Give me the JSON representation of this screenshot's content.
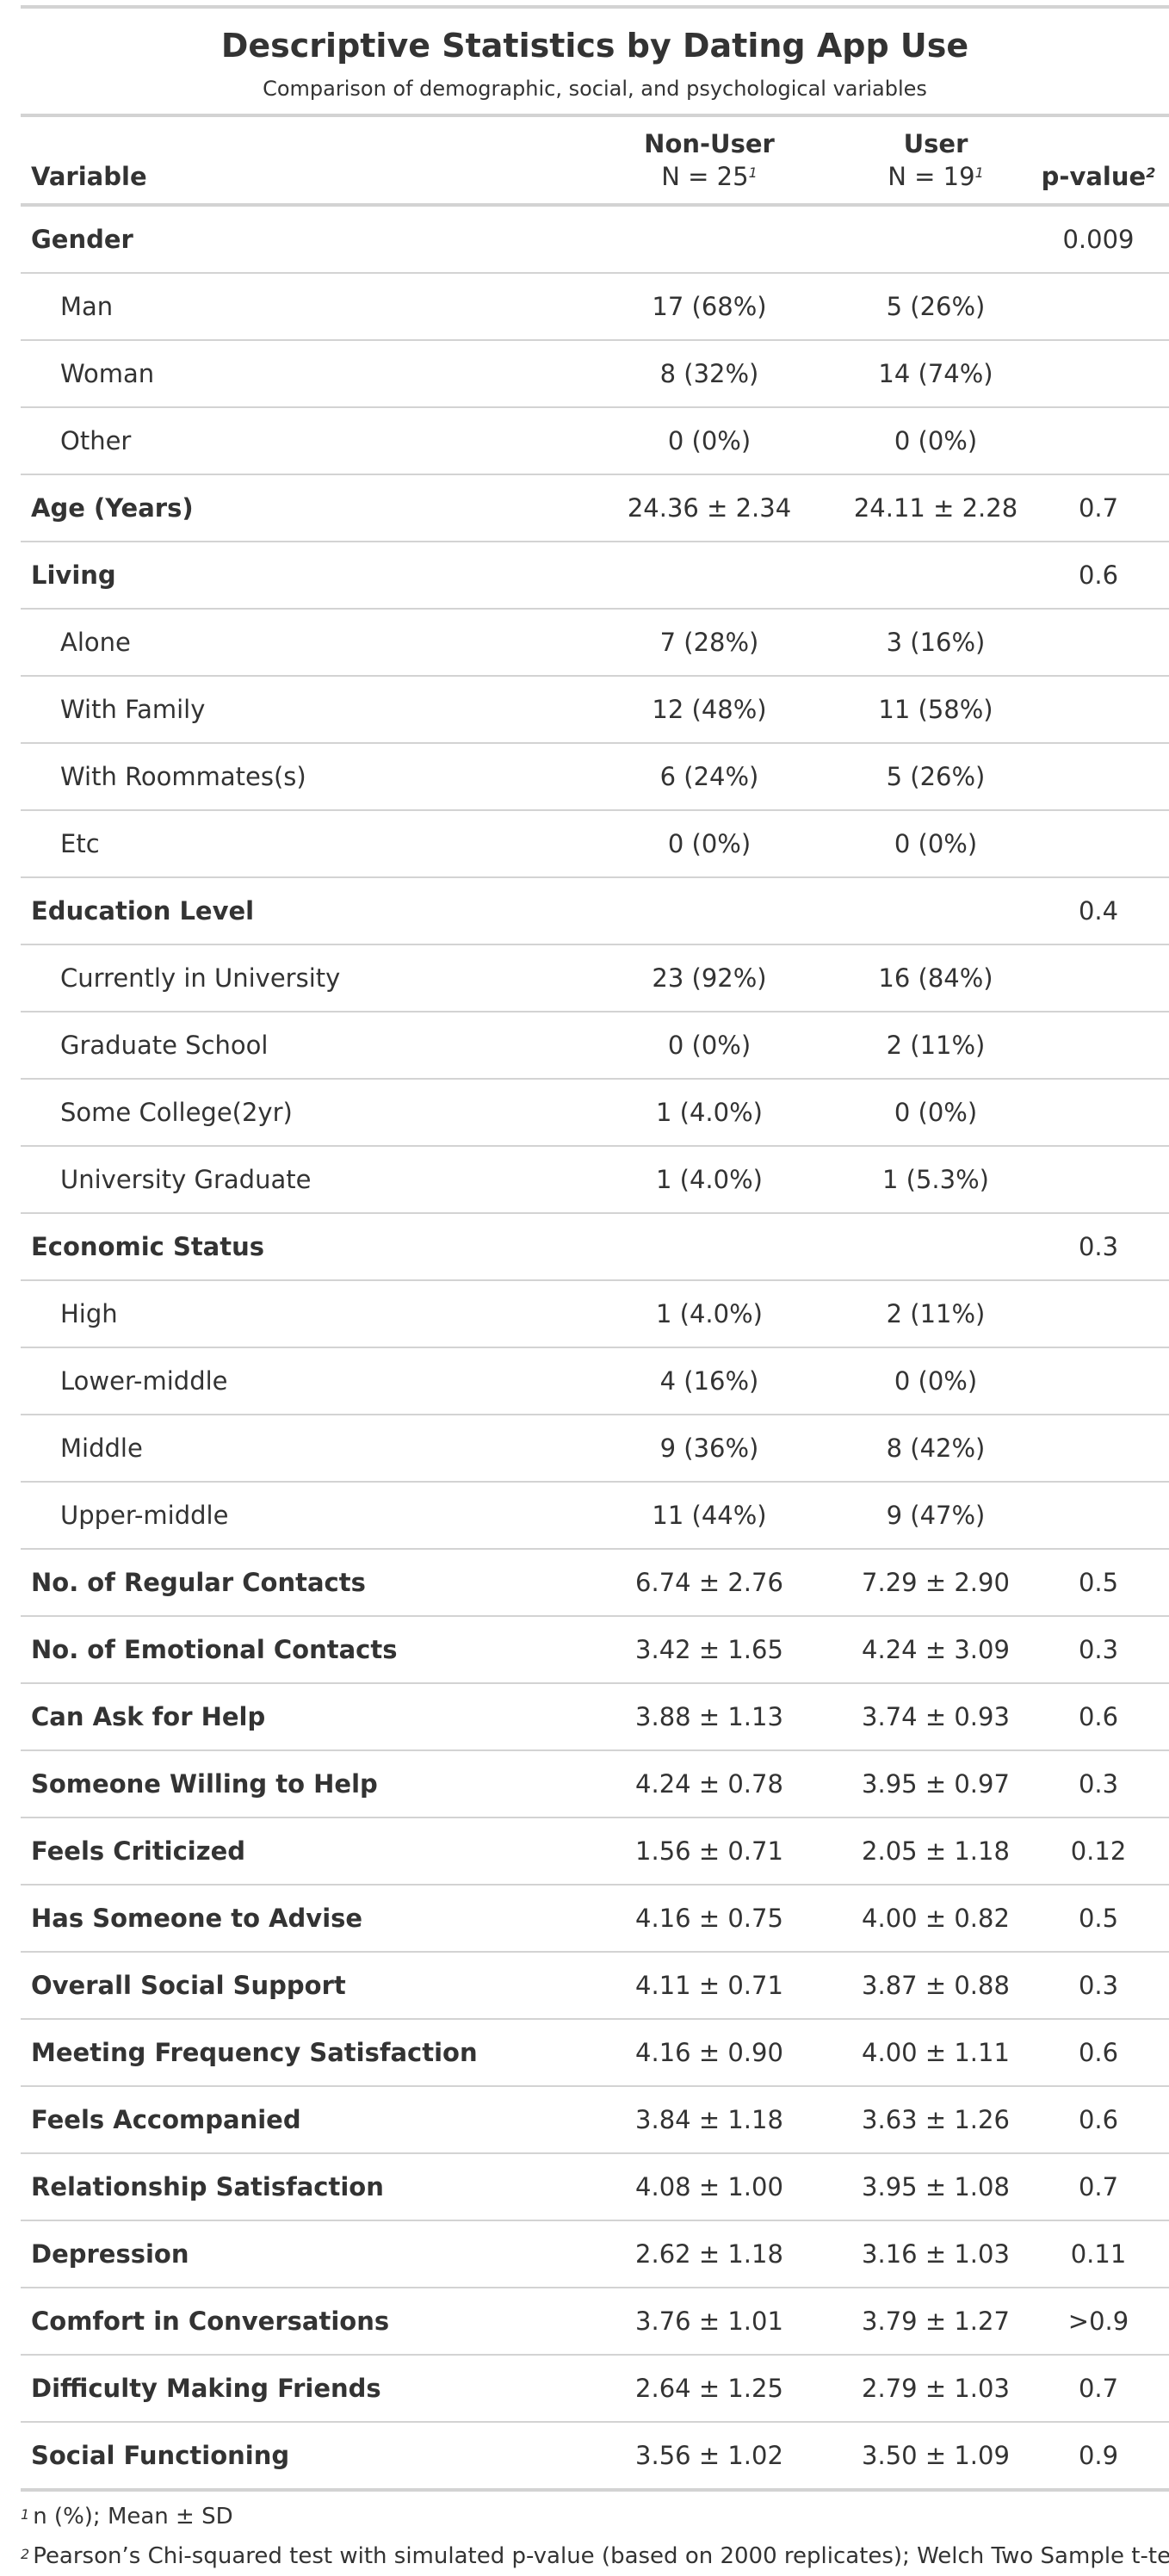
{
  "title": "Descriptive Statistics by Dating App Use",
  "subtitle": "Comparison of demographic, social, and psychological variables",
  "columns": {
    "variable": "Variable",
    "non_user": "Non-User",
    "non_user_n": "N = 25",
    "user": "User",
    "user_n": "N = 19",
    "p_value": "p-value",
    "n_footnote_mark": "1",
    "p_footnote_mark": "2"
  },
  "rows": [
    {
      "label": "Gender",
      "type": "group",
      "non_user": "",
      "user": "",
      "p": "0.009"
    },
    {
      "label": "Man",
      "type": "level",
      "non_user": "17 (68%)",
      "user": "5 (26%)",
      "p": ""
    },
    {
      "label": "Woman",
      "type": "level",
      "non_user": "8 (32%)",
      "user": "14 (74%)",
      "p": ""
    },
    {
      "label": "Other",
      "type": "level",
      "non_user": "0 (0%)",
      "user": "0 (0%)",
      "p": ""
    },
    {
      "label": "Age (Years)",
      "type": "group",
      "non_user": "24.36 ± 2.34",
      "user": "24.11 ± 2.28",
      "p": "0.7"
    },
    {
      "label": "Living",
      "type": "group",
      "non_user": "",
      "user": "",
      "p": "0.6"
    },
    {
      "label": "Alone",
      "type": "level",
      "non_user": "7 (28%)",
      "user": "3 (16%)",
      "p": ""
    },
    {
      "label": "With Family",
      "type": "level",
      "non_user": "12 (48%)",
      "user": "11 (58%)",
      "p": ""
    },
    {
      "label": "With Roommates(s)",
      "type": "level",
      "non_user": "6 (24%)",
      "user": "5 (26%)",
      "p": ""
    },
    {
      "label": "Etc",
      "type": "level",
      "non_user": "0 (0%)",
      "user": "0 (0%)",
      "p": ""
    },
    {
      "label": "Education Level",
      "type": "group",
      "non_user": "",
      "user": "",
      "p": "0.4"
    },
    {
      "label": "Currently in University",
      "type": "level",
      "non_user": "23 (92%)",
      "user": "16 (84%)",
      "p": ""
    },
    {
      "label": "Graduate School",
      "type": "level",
      "non_user": "0 (0%)",
      "user": "2 (11%)",
      "p": ""
    },
    {
      "label": "Some College(2yr)",
      "type": "level",
      "non_user": "1 (4.0%)",
      "user": "0 (0%)",
      "p": ""
    },
    {
      "label": "University Graduate",
      "type": "level",
      "non_user": "1 (4.0%)",
      "user": "1 (5.3%)",
      "p": ""
    },
    {
      "label": "Economic Status",
      "type": "group",
      "non_user": "",
      "user": "",
      "p": "0.3"
    },
    {
      "label": "High",
      "type": "level",
      "non_user": "1 (4.0%)",
      "user": "2 (11%)",
      "p": ""
    },
    {
      "label": "Lower-middle",
      "type": "level",
      "non_user": "4 (16%)",
      "user": "0 (0%)",
      "p": ""
    },
    {
      "label": "Middle",
      "type": "level",
      "non_user": "9 (36%)",
      "user": "8 (42%)",
      "p": ""
    },
    {
      "label": "Upper-middle",
      "type": "level",
      "non_user": "11 (44%)",
      "user": "9 (47%)",
      "p": ""
    },
    {
      "label": "No. of Regular Contacts",
      "type": "group",
      "non_user": "6.74 ± 2.76",
      "user": "7.29 ± 2.90",
      "p": "0.5"
    },
    {
      "label": "No. of Emotional Contacts",
      "type": "group",
      "non_user": "3.42 ± 1.65",
      "user": "4.24 ± 3.09",
      "p": "0.3"
    },
    {
      "label": "Can Ask for Help",
      "type": "group",
      "non_user": "3.88 ± 1.13",
      "user": "3.74 ± 0.93",
      "p": "0.6"
    },
    {
      "label": "Someone Willing to Help",
      "type": "group",
      "non_user": "4.24 ± 0.78",
      "user": "3.95 ± 0.97",
      "p": "0.3"
    },
    {
      "label": "Feels Criticized",
      "type": "group",
      "non_user": "1.56 ± 0.71",
      "user": "2.05 ± 1.18",
      "p": "0.12"
    },
    {
      "label": "Has Someone to Advise",
      "type": "group",
      "non_user": "4.16 ± 0.75",
      "user": "4.00 ± 0.82",
      "p": "0.5"
    },
    {
      "label": "Overall Social Support",
      "type": "group",
      "non_user": "4.11 ± 0.71",
      "user": "3.87 ± 0.88",
      "p": "0.3"
    },
    {
      "label": "Meeting Frequency Satisfaction",
      "type": "group",
      "non_user": "4.16 ± 0.90",
      "user": "4.00 ± 1.11",
      "p": "0.6"
    },
    {
      "label": "Feels Accompanied",
      "type": "group",
      "non_user": "3.84 ± 1.18",
      "user": "3.63 ± 1.26",
      "p": "0.6"
    },
    {
      "label": "Relationship Satisfaction",
      "type": "group",
      "non_user": "4.08 ± 1.00",
      "user": "3.95 ± 1.08",
      "p": "0.7"
    },
    {
      "label": "Depression",
      "type": "group",
      "non_user": "2.62 ± 1.18",
      "user": "3.16 ± 1.03",
      "p": "0.11"
    },
    {
      "label": "Comfort in Conversations",
      "type": "group",
      "non_user": "3.76 ± 1.01",
      "user": "3.79 ± 1.27",
      "p": ">0.9"
    },
    {
      "label": "Difficulty Making Friends",
      "type": "group",
      "non_user": "2.64 ± 1.25",
      "user": "2.79 ± 1.03",
      "p": "0.7"
    },
    {
      "label": "Social Functioning",
      "type": "group",
      "non_user": "3.56 ± 1.02",
      "user": "3.50 ± 1.09",
      "p": "0.9"
    }
  ],
  "footnotes": [
    {
      "mark": "1",
      "text": "n (%); Mean ± SD"
    },
    {
      "mark": "2",
      "text": "Pearson’s Chi-squared test with simulated p-value (based on 2000 replicates); Welch Two Sample t-test"
    }
  ]
}
